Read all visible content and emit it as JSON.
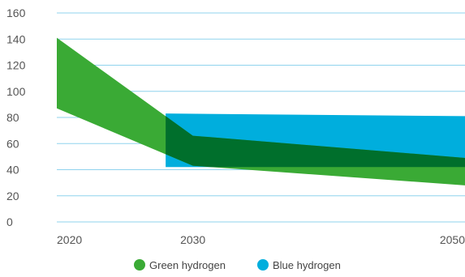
{
  "chart_data": {
    "type": "area",
    "title": "",
    "xlabel": "",
    "ylabel": "",
    "xlim": [
      2020,
      2050
    ],
    "ylim": [
      0,
      160
    ],
    "yticks": [
      0,
      20,
      40,
      60,
      80,
      100,
      120,
      140,
      160
    ],
    "xticks": [
      2020,
      2030,
      2050
    ],
    "grid": "horizontal",
    "legend_position": "bottom",
    "series": [
      {
        "name": "Green hydrogen",
        "color": "#3aaa35",
        "x": [
          2020,
          2030,
          2050
        ],
        "upper": [
          141,
          66,
          49
        ],
        "lower": [
          87,
          43,
          28
        ]
      },
      {
        "name": "Blue hydrogen",
        "color": "#00aedd",
        "x": [
          2028,
          2050
        ],
        "upper": [
          83,
          81
        ],
        "lower": [
          42,
          42
        ]
      }
    ],
    "overlap_color": "#006f2c"
  }
}
